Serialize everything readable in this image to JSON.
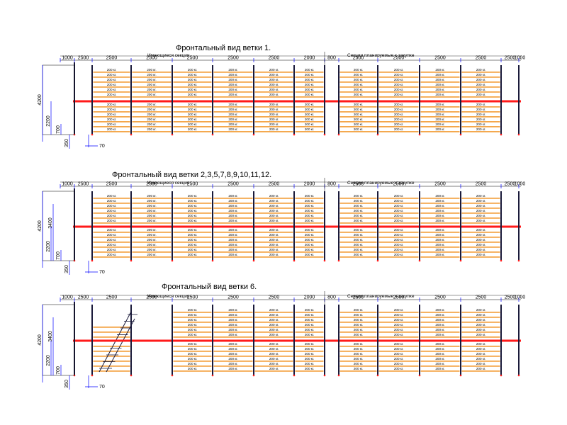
{
  "colors": {
    "beam": "#f4a64a",
    "mezzanine": "#ff1a1a",
    "upright": "#1a1a3a",
    "dimension": "#0000ff",
    "outline": "#000000"
  },
  "labels": {
    "existing": "Имеющиеся секции",
    "planned": "Секции планируемые к закупке",
    "capacity": "200 кг."
  },
  "views": [
    {
      "title": "Фронтальный вид ветки  1.",
      "sections": [
        "1000",
        "2500",
        "2500",
        "2500",
        "2500",
        "2500",
        "2500",
        "2000",
        "800",
        "2500",
        "2500",
        "2500",
        "2500",
        "2500",
        "1000"
      ],
      "heights": [
        "4200",
        "2200",
        "700",
        "350",
        "70"
      ],
      "stair": false
    },
    {
      "title": "Фронтальный вид ветки  2,3,5,7,8,9,10,11,12.",
      "sections": [
        "1000",
        "2500",
        "2500",
        "2500",
        "2500",
        "2500",
        "2500",
        "2000",
        "800",
        "2500",
        "2500",
        "2500",
        "2500",
        "2500",
        "1000"
      ],
      "heights": [
        "4200",
        "3400",
        "2200",
        "700",
        "350",
        "70"
      ],
      "stair": false
    },
    {
      "title": "Фронтальный вид ветки  6.",
      "sections": [
        "1000",
        "2500",
        "2500",
        "2500",
        "2500",
        "2500",
        "2500",
        "2000",
        "800",
        "2500",
        "2500",
        "2500",
        "2500",
        "2500",
        "1000"
      ],
      "heights": [
        "4200",
        "3400",
        "2200",
        "700",
        "350",
        "70"
      ],
      "stair": true
    }
  ]
}
